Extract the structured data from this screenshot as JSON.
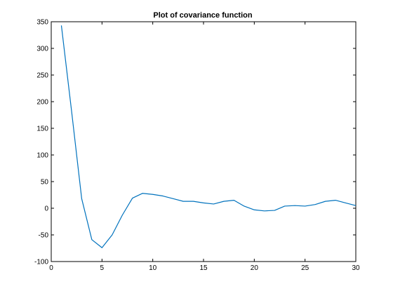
{
  "chart_data": {
    "type": "line",
    "title": "Plot of covariance function",
    "xlabel": "",
    "ylabel": "",
    "xlim": [
      0,
      30
    ],
    "ylim": [
      -100,
      350
    ],
    "x_ticks": [
      0,
      5,
      10,
      15,
      20,
      25,
      30
    ],
    "y_ticks": [
      -100,
      -50,
      0,
      50,
      100,
      150,
      200,
      250,
      300,
      350
    ],
    "grid": false,
    "legend": "none",
    "series": [
      {
        "color": "#0072bd",
        "x": [
          1,
          2,
          3,
          4,
          5,
          6,
          7,
          8,
          9,
          10,
          11,
          12,
          13,
          14,
          15,
          16,
          17,
          18,
          19,
          20,
          21,
          22,
          23,
          24,
          25,
          26,
          27,
          28,
          29,
          30
        ],
        "y": [
          343,
          183,
          18,
          -59,
          -74,
          -50,
          -13,
          19,
          28,
          26,
          23,
          18,
          13,
          13,
          10,
          8,
          13,
          15,
          4,
          -3,
          -5,
          -4,
          4,
          5,
          4,
          7,
          13,
          15,
          10,
          5
        ]
      }
    ]
  }
}
